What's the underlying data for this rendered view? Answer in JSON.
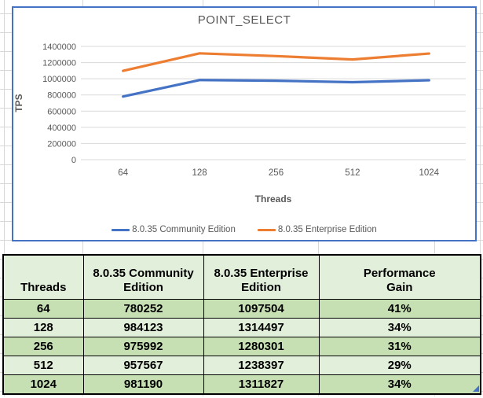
{
  "chart_data": {
    "type": "line",
    "title": "POINT_SELECT",
    "xlabel": "Threads",
    "ylabel": "TPS",
    "categories": [
      "64",
      "128",
      "256",
      "512",
      "1024"
    ],
    "series": [
      {
        "name": "8.0.35 Community Edition",
        "color": "#4472C4",
        "values": [
          780252,
          984123,
          975992,
          957567,
          981190
        ]
      },
      {
        "name": "8.0.35 Enterprise Edition",
        "color": "#ED7D31",
        "values": [
          1097504,
          1314497,
          1280301,
          1238397,
          1311827
        ]
      }
    ],
    "ylim": [
      0,
      1400000
    ],
    "ytick_step": 200000,
    "grid": true,
    "legend_position": "bottom"
  },
  "table": {
    "columns": [
      "Threads",
      "8.0.35 Community\nEdition",
      "8.0.35 Enterprise\nEdition",
      "Performance\nGain"
    ],
    "rows": [
      [
        "64",
        "780252",
        "1097504",
        "41%"
      ],
      [
        "128",
        "984123",
        "1314497",
        "34%"
      ],
      [
        "256",
        "975992",
        "1280301",
        "31%"
      ],
      [
        "512",
        "957567",
        "1238397",
        "29%"
      ],
      [
        "1024",
        "981190",
        "1311827",
        "34%"
      ]
    ]
  },
  "colors": {
    "series_community": "#4472C4",
    "series_enterprise": "#ED7D31",
    "chart_border": "#4472C4",
    "chart_gridline": "#D9D9D9",
    "axis_text": "#595959",
    "table_header_bg": "#E2EFDA",
    "table_row_dark_bg": "#C6E0B4",
    "table_row_light_bg": "#E2EFDA",
    "table_border": "#000000",
    "sheet_gridline": "#D8D8D8",
    "corner_marker": "#4472C4"
  }
}
